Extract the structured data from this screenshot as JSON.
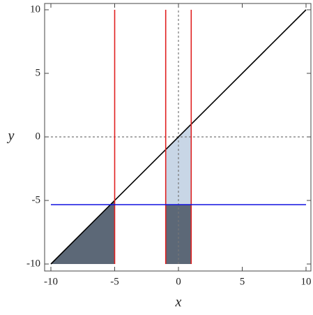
{
  "chart_data": {
    "type": "line",
    "x_label": "x",
    "y_label": "y",
    "xlim": [
      -10,
      10
    ],
    "ylim": [
      -10,
      10
    ],
    "xticks": [
      -10,
      -5,
      0,
      5,
      10
    ],
    "yticks": [
      -10,
      -5,
      0,
      5,
      10
    ],
    "fills": [
      {
        "color": "#5c6877",
        "x": [
          -10,
          -5,
          -5
        ],
        "values": [
          -10,
          -5,
          -10
        ]
      },
      {
        "color": "#c8d6e6",
        "x": [
          -1,
          -1,
          1,
          1
        ],
        "values": [
          -10,
          -1,
          1,
          -10
        ]
      },
      {
        "color": "#5c6877",
        "x": [
          -1,
          -1,
          1,
          1
        ],
        "values": [
          -10,
          -5.33,
          -5.33,
          -10
        ]
      }
    ],
    "series": [
      {
        "color": "#777777",
        "dash": true,
        "x": [
          0,
          0
        ],
        "values": [
          -10,
          10
        ]
      },
      {
        "color": "#777777",
        "dash": true,
        "x": [
          -10,
          10
        ],
        "values": [
          0,
          0
        ]
      },
      {
        "color": "#000000",
        "x": [
          -10,
          10
        ],
        "values": [
          -10,
          10
        ]
      },
      {
        "color": "#e02020",
        "x": [
          -5,
          -5
        ],
        "values": [
          -10,
          10
        ]
      },
      {
        "color": "#e02020",
        "x": [
          -1,
          -1
        ],
        "values": [
          -10,
          10
        ]
      },
      {
        "color": "#e02020",
        "x": [
          1,
          1
        ],
        "values": [
          -10,
          10
        ]
      },
      {
        "color": "#1010e0",
        "x": [
          -10,
          10
        ],
        "values": [
          -5.33,
          -5.33
        ]
      }
    ]
  }
}
